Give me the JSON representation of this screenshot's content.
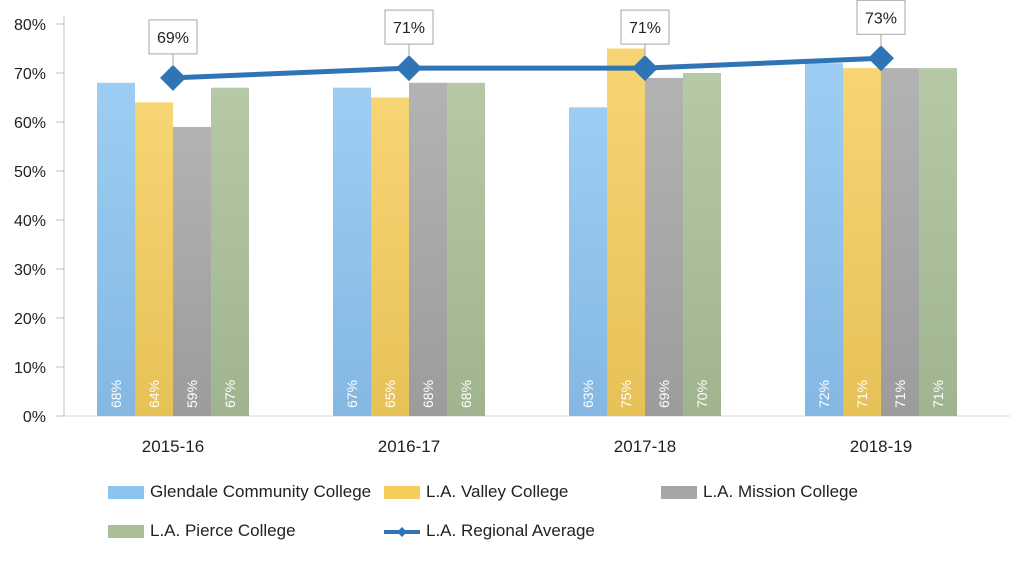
{
  "chart_data": {
    "type": "bar",
    "categories": [
      "2015-16",
      "2016-17",
      "2017-18",
      "2018-19"
    ],
    "series": [
      {
        "name": "Glendale Community College",
        "values": [
          68,
          67,
          63,
          72
        ],
        "color": "#8cc4f0",
        "labels": [
          "68%",
          "67%",
          "63%",
          "72%"
        ]
      },
      {
        "name": "L.A. Valley College",
        "values": [
          64,
          65,
          75,
          71
        ],
        "color": "#f5cd5c",
        "labels": [
          "64%",
          "65%",
          "75%",
          "71%"
        ]
      },
      {
        "name": "L.A. Mission College",
        "values": [
          59,
          68,
          69,
          71
        ],
        "color": "#a6a6a6",
        "labels": [
          "59%",
          "68%",
          "69%",
          "71%"
        ]
      },
      {
        "name": "L.A. Pierce College",
        "values": [
          67,
          68,
          70,
          71
        ],
        "color": "#a9bf98",
        "labels": [
          "67%",
          "68%",
          "70%",
          "71%"
        ]
      }
    ],
    "line_series": {
      "name": "L.A. Regional Average",
      "values": [
        69,
        71,
        71,
        73
      ],
      "color": "#2f75b5",
      "labels": [
        "69%",
        "71%",
        "71%",
        "73%"
      ]
    },
    "ylim": [
      0,
      80
    ],
    "yticks": [
      "0%",
      "10%",
      "20%",
      "30%",
      "40%",
      "50%",
      "60%",
      "70%",
      "80%"
    ],
    "grid": false,
    "legend": "bottom",
    "title": "",
    "xlabel": "",
    "ylabel": ""
  }
}
